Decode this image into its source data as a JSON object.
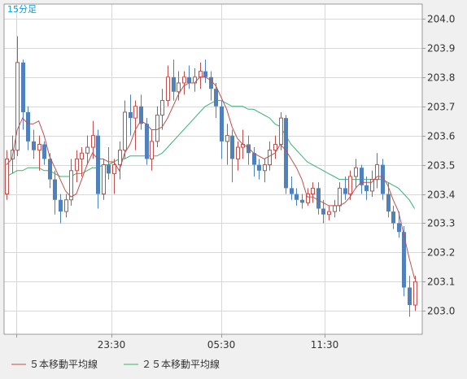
{
  "chart_data": {
    "type": "candlestick",
    "timeframe_label": "15分足",
    "y_ticks": [
      "204.0",
      "203.9",
      "203.8",
      "203.7",
      "203.6",
      "203.5",
      "203.4",
      "203.3",
      "203.2",
      "203.1",
      "203.0"
    ],
    "ylim": [
      202.92,
      204.05
    ],
    "x_ticks": [
      "23:30",
      "05:30",
      "11:30"
    ],
    "grid": true,
    "legend_position": "bottom-left",
    "colors": {
      "up": "#c0504d",
      "down": "#4f81bd",
      "ma5": "#c0504d",
      "ma25": "#3cb371",
      "grid": "#d8d8d8",
      "axis_text": "#333333",
      "label": "#00a0e9"
    },
    "series": [
      {
        "name": "５本移動平均線"
      },
      {
        "name": "２５本移動平均線"
      }
    ],
    "candles": [
      [
        203.4,
        203.55,
        203.38,
        203.52
      ],
      [
        203.52,
        203.6,
        203.47,
        203.55
      ],
      [
        203.55,
        203.94,
        203.53,
        203.85
      ],
      [
        203.85,
        203.86,
        203.62,
        203.68
      ],
      [
        203.68,
        203.7,
        203.55,
        203.58
      ],
      [
        203.58,
        203.62,
        203.52,
        203.55
      ],
      [
        203.55,
        203.6,
        203.48,
        203.57
      ],
      [
        203.57,
        203.58,
        203.5,
        203.52
      ],
      [
        203.52,
        203.54,
        203.42,
        203.45
      ],
      [
        203.45,
        203.48,
        203.33,
        203.38
      ],
      [
        203.38,
        203.4,
        203.3,
        203.34
      ],
      [
        203.34,
        203.4,
        203.32,
        203.38
      ],
      [
        203.38,
        203.52,
        203.36,
        203.48
      ],
      [
        203.48,
        203.55,
        203.44,
        203.52
      ],
      [
        203.52,
        203.56,
        203.46,
        203.54
      ],
      [
        203.54,
        203.6,
        203.5,
        203.56
      ],
      [
        203.56,
        203.65,
        203.52,
        203.6
      ],
      [
        203.6,
        203.62,
        203.35,
        203.4
      ],
      [
        203.4,
        203.52,
        203.38,
        203.5
      ],
      [
        203.5,
        203.56,
        203.45,
        203.47
      ],
      [
        203.47,
        203.52,
        203.4,
        203.5
      ],
      [
        203.5,
        203.58,
        203.45,
        203.55
      ],
      [
        203.55,
        203.72,
        203.52,
        203.68
      ],
      [
        203.68,
        203.74,
        203.6,
        203.66
      ],
      [
        203.66,
        203.72,
        203.55,
        203.7
      ],
      [
        203.7,
        203.74,
        203.62,
        203.64
      ],
      [
        203.64,
        203.66,
        203.5,
        203.52
      ],
      [
        203.52,
        203.62,
        203.48,
        203.58
      ],
      [
        203.58,
        203.7,
        203.56,
        203.67
      ],
      [
        203.67,
        203.76,
        203.62,
        203.72
      ],
      [
        203.72,
        203.84,
        203.7,
        203.8
      ],
      [
        203.8,
        203.86,
        203.72,
        203.75
      ],
      [
        203.75,
        203.82,
        203.72,
        203.78
      ],
      [
        203.78,
        203.82,
        203.74,
        203.8
      ],
      [
        203.8,
        203.84,
        203.76,
        203.78
      ],
      [
        203.78,
        203.83,
        203.75,
        203.8
      ],
      [
        203.8,
        203.85,
        203.76,
        203.82
      ],
      [
        203.82,
        203.86,
        203.78,
        203.8
      ],
      [
        203.8,
        203.82,
        203.72,
        203.76
      ],
      [
        203.76,
        203.78,
        203.66,
        203.7
      ],
      [
        203.7,
        203.72,
        203.52,
        203.58
      ],
      [
        203.58,
        203.64,
        203.5,
        203.6
      ],
      [
        203.6,
        203.62,
        203.44,
        203.52
      ],
      [
        203.52,
        203.58,
        203.48,
        203.56
      ],
      [
        203.56,
        203.62,
        203.52,
        203.57
      ],
      [
        203.57,
        203.6,
        203.5,
        203.54
      ],
      [
        203.54,
        203.56,
        203.46,
        203.5
      ],
      [
        203.5,
        203.52,
        203.45,
        203.48
      ],
      [
        203.48,
        203.52,
        203.44,
        203.5
      ],
      [
        203.5,
        203.58,
        203.48,
        203.55
      ],
      [
        203.55,
        203.6,
        203.52,
        203.57
      ],
      [
        203.57,
        203.68,
        203.55,
        203.66
      ],
      [
        203.66,
        203.67,
        203.4,
        203.42
      ],
      [
        203.42,
        203.46,
        203.38,
        203.4
      ],
      [
        203.4,
        203.42,
        203.36,
        203.38
      ],
      [
        203.38,
        203.4,
        203.35,
        203.37
      ],
      [
        203.37,
        203.42,
        203.36,
        203.4
      ],
      [
        203.4,
        203.44,
        203.37,
        203.42
      ],
      [
        203.42,
        203.44,
        203.33,
        203.35
      ],
      [
        203.35,
        203.38,
        203.3,
        203.33
      ],
      [
        203.33,
        203.36,
        203.31,
        203.34
      ],
      [
        203.34,
        203.38,
        203.32,
        203.36
      ],
      [
        203.36,
        203.44,
        203.34,
        203.42
      ],
      [
        203.42,
        203.46,
        203.38,
        203.4
      ],
      [
        203.4,
        203.48,
        203.38,
        203.46
      ],
      [
        203.46,
        203.52,
        203.42,
        203.49
      ],
      [
        203.49,
        203.5,
        203.4,
        203.43
      ],
      [
        203.43,
        203.46,
        203.38,
        203.41
      ],
      [
        203.41,
        203.48,
        203.39,
        203.45
      ],
      [
        203.45,
        203.54,
        203.42,
        203.5
      ],
      [
        203.5,
        203.52,
        203.38,
        203.4
      ],
      [
        203.4,
        203.44,
        203.32,
        203.34
      ],
      [
        203.34,
        203.36,
        203.28,
        203.3
      ],
      [
        203.3,
        203.34,
        203.25,
        203.27
      ],
      [
        203.27,
        203.29,
        203.05,
        203.08
      ],
      [
        203.08,
        203.12,
        202.98,
        203.02
      ],
      [
        203.02,
        203.12,
        203.0,
        203.1
      ]
    ],
    "ma5": [
      203.5,
      203.52,
      203.62,
      203.66,
      203.64,
      203.64,
      203.65,
      203.6,
      203.53,
      203.49,
      203.45,
      203.41,
      203.39,
      203.4,
      203.45,
      203.5,
      203.54,
      203.52,
      203.52,
      203.51,
      203.51,
      203.48,
      203.54,
      203.57,
      203.62,
      203.65,
      203.64,
      203.62,
      203.62,
      203.63,
      203.66,
      203.7,
      203.74,
      203.77,
      203.78,
      203.78,
      203.8,
      203.8,
      203.79,
      203.77,
      203.73,
      203.69,
      203.63,
      203.59,
      203.57,
      203.56,
      203.54,
      203.53,
      203.52,
      203.53,
      203.54,
      203.57,
      203.55,
      203.52,
      203.49,
      203.45,
      203.39,
      203.39,
      203.38,
      203.37,
      203.36,
      203.36,
      203.36,
      203.37,
      203.39,
      203.42,
      203.44,
      203.44,
      203.44,
      203.46,
      203.46,
      203.43,
      203.38,
      203.34,
      203.26,
      203.18,
      203.11
    ],
    "ma25": [
      203.46,
      203.47,
      203.48,
      203.48,
      203.49,
      203.49,
      203.49,
      203.48,
      203.48,
      203.47,
      203.46,
      203.46,
      203.46,
      203.47,
      203.47,
      203.48,
      203.49,
      203.49,
      203.5,
      203.5,
      203.51,
      203.52,
      203.52,
      203.53,
      203.53,
      203.53,
      203.53,
      203.53,
      203.53,
      203.54,
      203.56,
      203.58,
      203.6,
      203.62,
      203.64,
      203.66,
      203.68,
      203.7,
      203.71,
      203.72,
      203.72,
      203.71,
      203.7,
      203.7,
      203.7,
      203.69,
      203.69,
      203.68,
      203.67,
      203.66,
      203.64,
      203.63,
      203.6,
      203.57,
      203.55,
      203.53,
      203.51,
      203.5,
      203.49,
      203.48,
      203.47,
      203.46,
      203.45,
      203.45,
      203.45,
      203.45,
      203.45,
      203.45,
      203.45,
      203.45,
      203.45,
      203.44,
      203.43,
      203.42,
      203.4,
      203.38,
      203.35
    ]
  }
}
